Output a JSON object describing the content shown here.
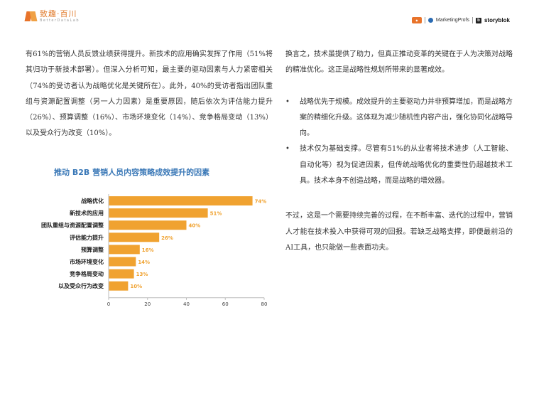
{
  "header": {
    "brand_cn": "致趣·百川",
    "brand_en": "BetterDataLab",
    "partners": [
      "MarketingProfs",
      "storyblok"
    ]
  },
  "left": {
    "paragraph": "有61%的营销人员反馈业绩获得提升。新技术的应用确实发挥了作用（51%将其归功于新技术部署）。但深入分析可知，最主要的驱动因素与人力紧密相关（74%的受访者认为战略优化是关键所在）。此外，40%的受访者指出团队重组与资源配置调整（另一人力因素）是重要原因，随后依次为评估能力提升（26%）、预算调整（16%）、市场环境变化（14%）、竞争格局变动（13%）以及受众行为改变（10%）。"
  },
  "right": {
    "intro": "换言之，技术虽提供了助力，但真正推动变革的关键在于人为决策对战略的精准优化。这正是战略性规划所带来的显著成效。",
    "bullets": [
      "战略优先于规模。成效提升的主要驱动力并非预算增加，而是战略方案的精细化升级。这体现为减少随机性内容产出，强化协同化战略导向。",
      "技术仅为基础支撑。尽管有51%的从业者将技术进步（人工智能、自动化等）视为促进因素，但传统战略优化的重要性仍超越技术工具。技术本身不创造战略，而是战略的增效器。"
    ],
    "closing": "不过，这是一个需要持续完善的过程，在不断丰富、迭代的过程中，营销人才能在技术投入中获得可观的回报。若缺乏战略支撑，即便最前沿的AI工具，也只能做一些表面功夫。"
  },
  "chart_data": {
    "type": "bar",
    "orientation": "horizontal",
    "title": "推动 B2B 营销人员内容策略成效提升的因素",
    "categories": [
      "战略优化",
      "新技术的应用",
      "团队重组与资源配置调整",
      "评估能力提升",
      "预算调整",
      "市场环境变化",
      "竞争格局变动",
      "以及受众行为改变"
    ],
    "values": [
      74,
      51,
      40,
      26,
      16,
      14,
      13,
      10
    ],
    "data_labels": [
      "74%",
      "51%",
      "40%",
      "26%",
      "16%",
      "14%",
      "13%",
      "10%"
    ],
    "xlim": [
      0,
      80
    ],
    "xticks": [
      0,
      20,
      40,
      60,
      80
    ],
    "bar_color": "#f0a230",
    "label_color": "#f0a230",
    "grid": false
  }
}
